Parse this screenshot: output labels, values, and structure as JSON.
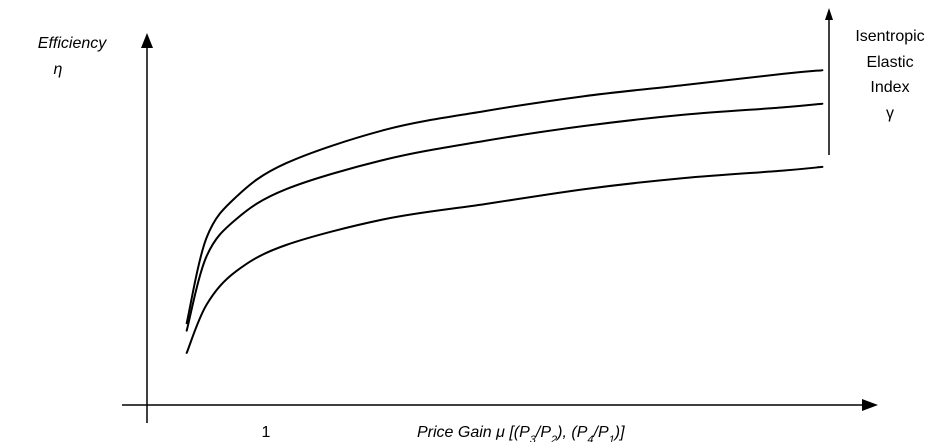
{
  "chart_data": {
    "type": "line",
    "ylabel_line1": "Efficiency",
    "ylabel_line2": "η",
    "xlabel_prefix": "Price Gain μ  [(P",
    "xlabel_sub1": "3",
    "xlabel_mid1": "/P",
    "xlabel_sub2": "2",
    "xlabel_mid2": "), (P",
    "xlabel_sub3": "4",
    "xlabel_mid3": "/P",
    "xlabel_sub4": "1",
    "xlabel_suffix": ")]",
    "x_tick_label": "1",
    "x_tick_value": 1,
    "xlim": [
      0.8,
      4.5
    ],
    "ylim": [
      0,
      1.0
    ],
    "annotation": {
      "lines": [
        "Isentropic",
        "Elastic",
        "Index",
        "γ"
      ],
      "arrow_direction": "up"
    },
    "series": [
      {
        "x": [
          1.0,
          1.1,
          1.25,
          1.5,
          2.0,
          2.5,
          3.0,
          3.5,
          4.0,
          4.2
        ],
        "y": [
          0.22,
          0.45,
          0.56,
          0.65,
          0.74,
          0.79,
          0.83,
          0.86,
          0.89,
          0.9
        ]
      },
      {
        "x": [
          1.0,
          1.1,
          1.25,
          1.5,
          2.0,
          2.5,
          3.0,
          3.5,
          4.0,
          4.2
        ],
        "y": [
          0.2,
          0.4,
          0.5,
          0.58,
          0.66,
          0.71,
          0.75,
          0.78,
          0.8,
          0.81
        ]
      },
      {
        "x": [
          1.0,
          1.1,
          1.25,
          1.5,
          2.0,
          2.5,
          3.0,
          3.5,
          4.0,
          4.2
        ],
        "y": [
          0.14,
          0.27,
          0.36,
          0.43,
          0.5,
          0.54,
          0.58,
          0.61,
          0.63,
          0.64
        ]
      }
    ]
  }
}
